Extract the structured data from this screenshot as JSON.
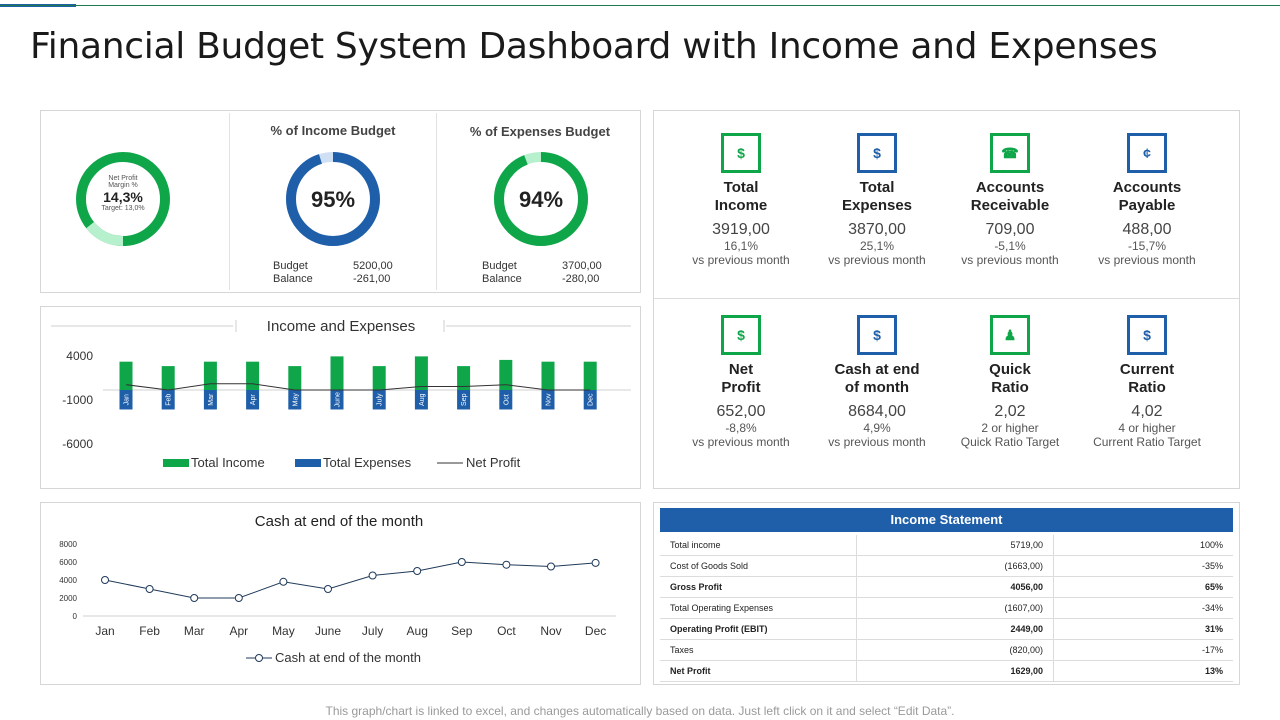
{
  "title": "Financial Budget System Dashboard with Income and Expenses",
  "colors": {
    "green": "#0fa64a",
    "blue": "#1f5ea8",
    "light_green": "#b7f0cc",
    "light_blue": "#cfe0f5",
    "line": "#1f3a5a"
  },
  "gauges": {
    "net_profit": {
      "label1": "Net Profit",
      "label2": "Margin %",
      "value": "14,3%",
      "target": "Target: 13,0%",
      "fraction": 0.143
    },
    "income_budget": {
      "title": "% of Income Budget",
      "value": "95%",
      "fraction": 0.95,
      "budget_label": "Budget",
      "budget_value": "5200,00",
      "balance_label": "Balance",
      "balance_value": "-261,00"
    },
    "expenses_budget": {
      "title": "% of Expenses Budget",
      "value": "94%",
      "fraction": 0.94,
      "budget_label": "Budget",
      "budget_value": "3700,00",
      "balance_label": "Balance",
      "balance_value": "-280,00"
    }
  },
  "kpis": [
    {
      "label1": "Total",
      "label2": "Income",
      "value": "3919,00",
      "sub1": "16,1%",
      "sub2": "vs previous month",
      "icon": "people-money-icon",
      "glyph": "$",
      "color": "#0fa64a"
    },
    {
      "label1": "Total",
      "label2": "Expenses",
      "value": "3870,00",
      "sub1": "25,1%",
      "sub2": "vs previous month",
      "icon": "money-bags-icon",
      "glyph": "$",
      "color": "#1f5ea8"
    },
    {
      "label1": "Accounts",
      "label2": "Receivable",
      "value": "709,00",
      "sub1": "-5,1%",
      "sub2": "vs previous month",
      "icon": "phone-money-icon",
      "glyph": "☎",
      "color": "#0fa64a"
    },
    {
      "label1": "Accounts",
      "label2": "Payable",
      "value": "488,00",
      "sub1": "-15,7%",
      "sub2": "vs previous month",
      "icon": "hand-coin-icon",
      "glyph": "¢",
      "color": "#1f5ea8"
    },
    {
      "label1": "Net",
      "label2": "Profit",
      "value": "652,00",
      "sub1": "-8,8%",
      "sub2": "vs previous month",
      "icon": "growth-chart-icon",
      "glyph": "$",
      "color": "#0fa64a"
    },
    {
      "label1": "Cash at end",
      "label2": "of month",
      "value": "8684,00",
      "sub1": "4,9%",
      "sub2": "vs previous month",
      "icon": "hand-money-bag-icon",
      "glyph": "$",
      "color": "#1f5ea8"
    },
    {
      "label1": "Quick",
      "label2": "Ratio",
      "value": "2,02",
      "sub1": "2 or higher",
      "sub2": "Quick Ratio Target",
      "icon": "person-chart-icon",
      "glyph": "♟",
      "color": "#0fa64a"
    },
    {
      "label1": "Current",
      "label2": "Ratio",
      "value": "4,02",
      "sub1": "4 or higher",
      "sub2": "Current Ratio Target",
      "icon": "network-dollar-icon",
      "glyph": "$",
      "color": "#1f5ea8"
    }
  ],
  "income_statement": {
    "title": "Income Statement",
    "rows": [
      {
        "label": "Total income",
        "amount": "5719,00",
        "pct": "100%",
        "bold": false
      },
      {
        "label": "Cost of Goods Sold",
        "amount": "(1663,00)",
        "pct": "-35%",
        "bold": false
      },
      {
        "label": "Gross Profit",
        "amount": "4056,00",
        "pct": "65%",
        "bold": true
      },
      {
        "label": "Total Operating Expenses",
        "amount": "(1607,00)",
        "pct": "-34%",
        "bold": false
      },
      {
        "label": "Operating Profit (EBIT)",
        "amount": "2449,00",
        "pct": "31%",
        "bold": true
      },
      {
        "label": "Taxes",
        "amount": "(820,00)",
        "pct": "-17%",
        "bold": false
      },
      {
        "label": "Net Profit",
        "amount": "1629,00",
        "pct": "13%",
        "bold": true
      }
    ]
  },
  "footer": "This graph/chart is linked to excel, and changes automatically based on data. Just left click on it and select “Edit Data”.",
  "chart_data": [
    {
      "type": "bar",
      "title": "Income and Expenses",
      "categories": [
        "Jan",
        "Feb",
        "Mar",
        "Apr",
        "May",
        "June",
        "July",
        "Aug",
        "Sep",
        "Oct",
        "Nov",
        "Dec"
      ],
      "ytick_labels": [
        "4000",
        "-1000",
        "-6000"
      ],
      "ylim": [
        -6000,
        5000
      ],
      "series": [
        {
          "name": "Total Income",
          "type": "bar",
          "values": [
            3200,
            2700,
            3200,
            3200,
            2700,
            3800,
            2700,
            3800,
            2700,
            3400,
            3200,
            3200
          ]
        },
        {
          "name": "Total Expenses",
          "type": "bar",
          "values": [
            -2200,
            -2200,
            -2200,
            -2200,
            -2200,
            -2200,
            -2200,
            -2200,
            -2200,
            -2200,
            -2200,
            -2200
          ]
        },
        {
          "name": "Net Profit",
          "type": "line",
          "values": [
            600,
            0,
            700,
            700,
            0,
            0,
            0,
            400,
            400,
            600,
            0,
            0
          ]
        }
      ],
      "legend": "bottom"
    },
    {
      "type": "line",
      "title": "Cash at end of the month",
      "categories": [
        "Jan",
        "Feb",
        "Mar",
        "Apr",
        "May",
        "June",
        "July",
        "Aug",
        "Sep",
        "Oct",
        "Nov",
        "Dec"
      ],
      "yticks": [
        0,
        2000,
        4000,
        6000,
        8000
      ],
      "ylim": [
        0,
        8000
      ],
      "series": [
        {
          "name": "Cash at end of the month",
          "values": [
            4000,
            3000,
            2000,
            2000,
            3800,
            3000,
            4500,
            5000,
            6000,
            5700,
            5500,
            5900
          ]
        }
      ],
      "legend": "bottom"
    }
  ]
}
